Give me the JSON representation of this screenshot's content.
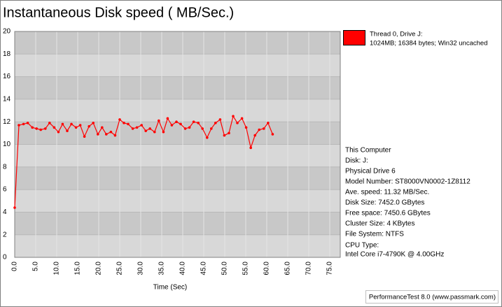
{
  "chart_data": {
    "type": "line",
    "title": "Instantaneous Disk speed ( MB/Sec.)",
    "x_label": "Time (Sec)",
    "x": [
      0,
      1.0,
      2.1,
      3.1,
      4.2,
      5.2,
      6.2,
      7.3,
      8.3,
      9.4,
      10.4,
      11.4,
      12.5,
      13.5,
      14.6,
      15.6,
      16.6,
      17.7,
      18.7,
      19.8,
      20.8,
      21.8,
      22.9,
      23.9,
      25.0,
      26.0,
      27.0,
      28.1,
      29.1,
      30.2,
      31.2,
      32.2,
      33.3,
      34.3,
      35.4,
      36.4,
      37.4,
      38.5,
      39.5,
      40.6,
      41.6,
      42.6,
      43.7,
      44.7,
      45.8,
      46.8,
      47.8,
      48.9,
      49.9,
      51.0,
      52.0,
      53.0,
      54.1,
      55.1,
      56.2,
      57.2,
      58.2,
      59.3,
      60.3,
      61.4
    ],
    "series": [
      {
        "name": "Thread 0, Drive J:",
        "detail": "1024MB; 16384 bytes; Win32 uncached",
        "color": "#ff0000",
        "values": [
          4.4,
          11.7,
          11.8,
          11.9,
          11.5,
          11.4,
          11.3,
          11.4,
          11.9,
          11.5,
          11.1,
          11.8,
          11.2,
          11.8,
          11.5,
          11.7,
          10.7,
          11.6,
          11.9,
          10.9,
          11.5,
          10.9,
          11.1,
          10.8,
          12.2,
          11.9,
          11.8,
          11.4,
          11.5,
          11.7,
          11.2,
          11.4,
          11.1,
          12.1,
          11.1,
          12.3,
          11.7,
          12.0,
          11.8,
          11.4,
          11.5,
          12.0,
          11.9,
          11.4,
          10.6,
          11.4,
          11.9,
          12.2,
          10.8,
          11.0,
          12.5,
          11.9,
          12.3,
          11.5,
          9.7,
          10.8,
          11.3,
          11.4,
          11.9,
          10.9
        ]
      }
    ],
    "xlim": [
      0,
      77.5
    ],
    "xticks": [
      {
        "value": 0,
        "label": "0.0"
      },
      {
        "value": 5,
        "label": "5.0"
      },
      {
        "value": 10,
        "label": "10.0"
      },
      {
        "value": 15,
        "label": "15.0"
      },
      {
        "value": 20,
        "label": "20.0"
      },
      {
        "value": 25,
        "label": "25.0"
      },
      {
        "value": 30,
        "label": "30.0"
      },
      {
        "value": 35,
        "label": "35.0"
      },
      {
        "value": 40,
        "label": "40.0"
      },
      {
        "value": 45,
        "label": "45.0"
      },
      {
        "value": 50,
        "label": "50.0"
      },
      {
        "value": 55,
        "label": "55.0"
      },
      {
        "value": 60,
        "label": "60.0"
      },
      {
        "value": 65,
        "label": "65.0"
      },
      {
        "value": 70,
        "label": "70.0"
      },
      {
        "value": 75,
        "label": "75.0"
      }
    ],
    "ylim": [
      0,
      20
    ],
    "yticks": [
      0,
      2,
      4,
      6,
      8,
      10,
      12,
      14,
      16,
      18,
      20
    ],
    "grid": true,
    "info": [
      "This Computer",
      "Disk: J:",
      "Physical Drive 6",
      "Model Number: ST8000VN0002-1Z8112",
      "Ave. speed: 11.32 MB/Sec.",
      "Disk Size: 7452.0 GBytes",
      "Free space: 7450.6 GBytes",
      "Cluster Size: 4 KBytes",
      "File System: NTFS",
      "CPU Type:",
      "Intel Core i7-4790K @ 4.00GHz"
    ],
    "footer": "PerformanceTest 8.0 (www.passmark.com)"
  }
}
